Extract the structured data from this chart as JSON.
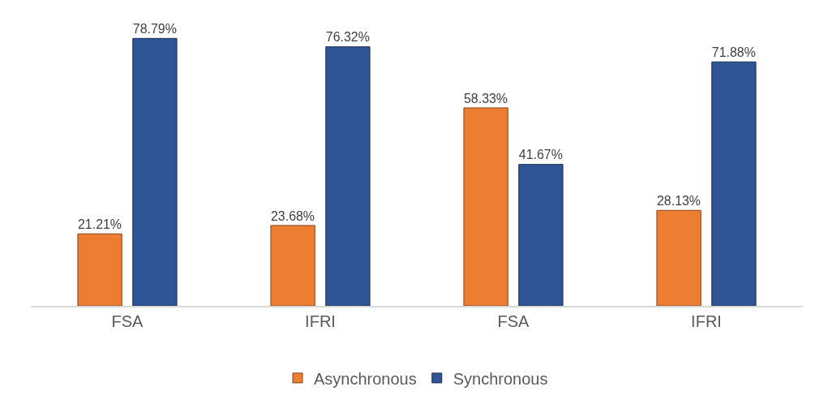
{
  "chart_data": {
    "type": "bar",
    "categories": [
      "FSA",
      "IFRI",
      "FSA",
      "IFRI"
    ],
    "series": [
      {
        "name": "Asynchronous",
        "color": "#ed7d31",
        "values": [
          21.21,
          23.68,
          58.33,
          28.13
        ],
        "value_labels": [
          "21.21%",
          "23.68%",
          "58.33%",
          "28.13%"
        ]
      },
      {
        "name": "Synchronous",
        "color": "#2f5597",
        "values": [
          78.79,
          76.32,
          41.67,
          71.88
        ],
        "value_labels": [
          "78.79%",
          "76.32%",
          "41.67%",
          "71.88%"
        ]
      }
    ],
    "tick_labels": "x",
    "legend": "bottom"
  }
}
